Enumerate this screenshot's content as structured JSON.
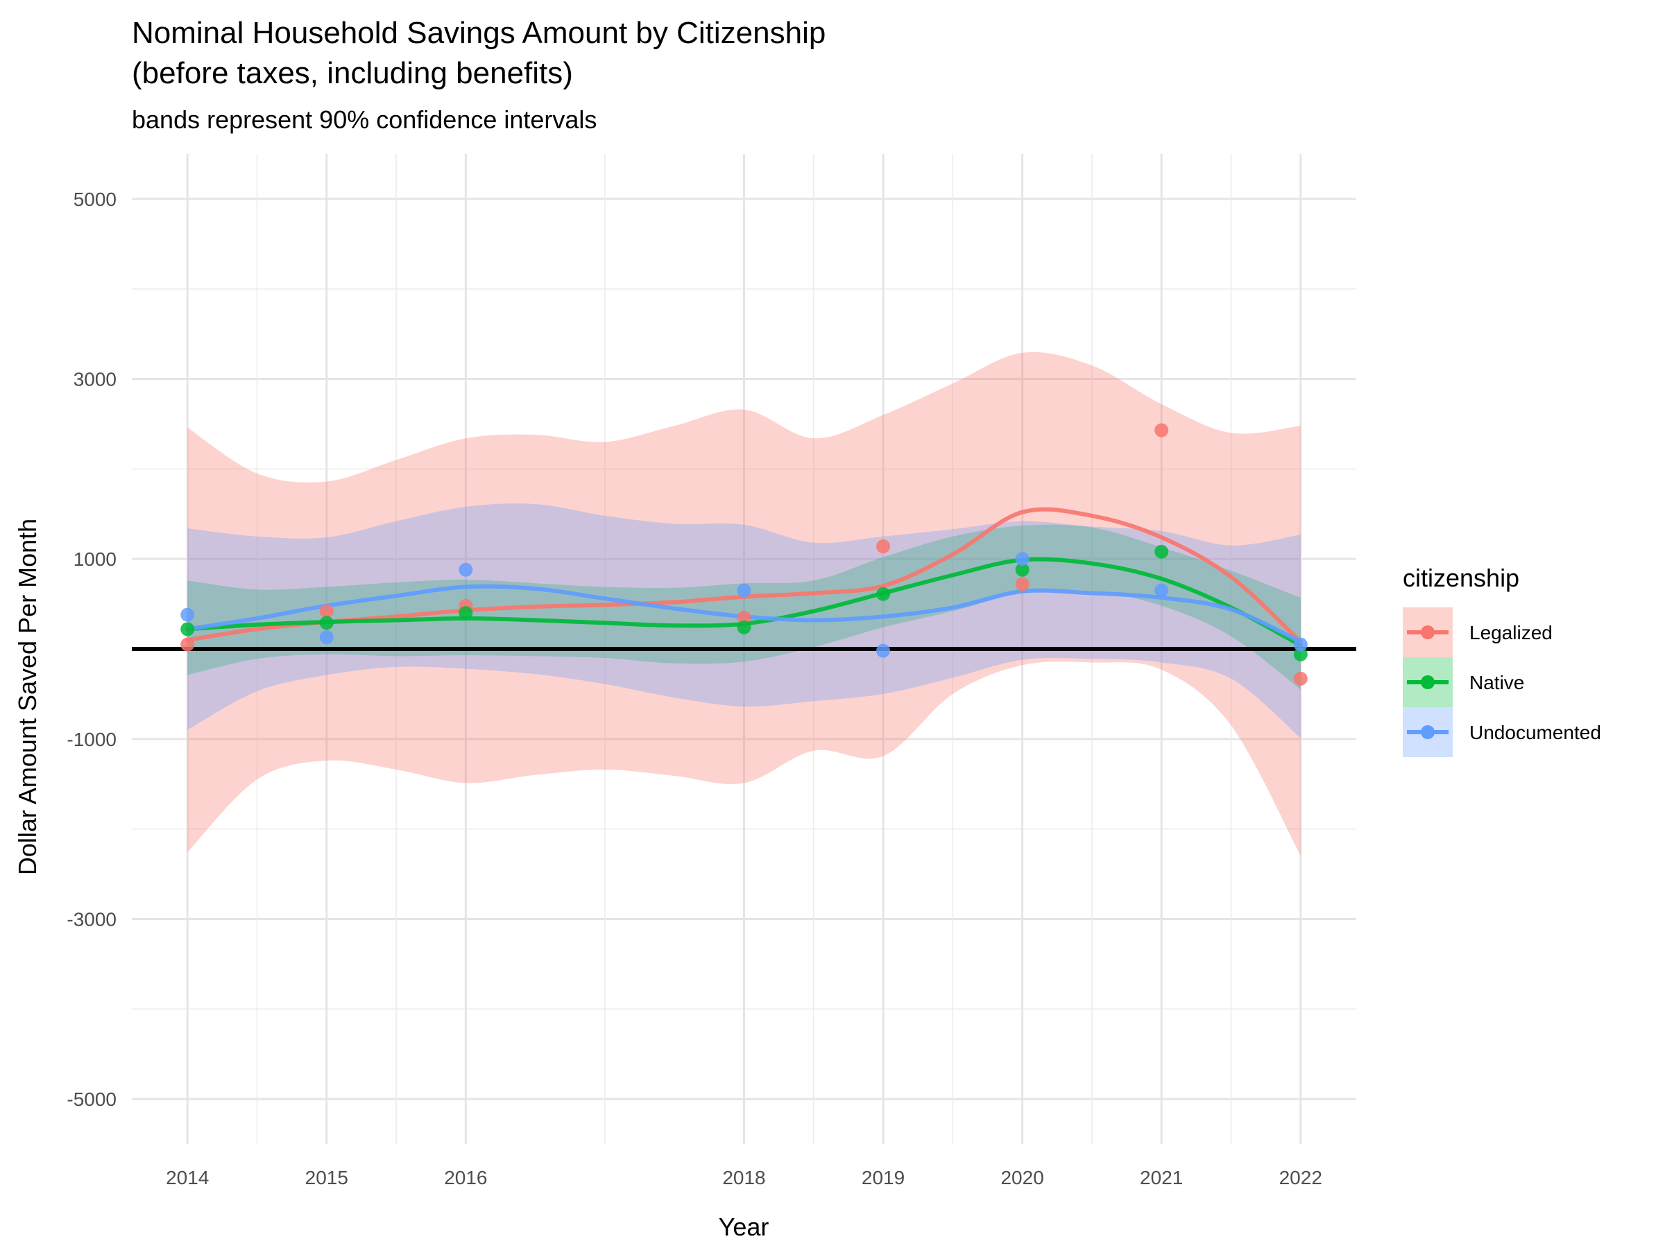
{
  "chart_data": {
    "type": "line",
    "title": "Nominal Household Savings Amount by Citizenship",
    "title_line2": "(before taxes, including benefits)",
    "subtitle": "bands represent 90% confidence intervals",
    "xlabel": "Year",
    "ylabel": "Dollar Amount Saved Per Month",
    "xlim": [
      2013.6,
      2022.4
    ],
    "ylim": [
      -5500,
      5500
    ],
    "x_ticks": [
      2014,
      2015,
      2016,
      2018,
      2019,
      2020,
      2021,
      2022
    ],
    "x_tick_labels": [
      "2014",
      "2015",
      "2016",
      "2018",
      "2019",
      "2020",
      "2021",
      "2022"
    ],
    "x_minor_gridlines": [
      2014.5,
      2015.5,
      2017,
      2018.5,
      2019.5,
      2020.5,
      2021.5
    ],
    "y_ticks": [
      -5000,
      -3000,
      -1000,
      1000,
      3000,
      5000
    ],
    "y_tick_labels": [
      "-5000",
      "-3000",
      "-1000",
      "1000",
      "3000",
      "5000"
    ],
    "y_minor_gridlines": [
      -4000,
      -2000,
      0,
      2000,
      4000
    ],
    "reference_line_y": 0,
    "grid": true,
    "legend": {
      "title": "citizenship",
      "position": "right"
    },
    "series": [
      {
        "name": "Legalized",
        "color": "#F8766D",
        "band_opacity": 0.32,
        "points": [
          [
            2014,
            50
          ],
          [
            2015,
            420
          ],
          [
            2016,
            480
          ],
          [
            2018,
            350
          ],
          [
            2019,
            1140
          ],
          [
            2020,
            720
          ],
          [
            2021,
            2430
          ],
          [
            2022,
            -330
          ]
        ],
        "smooth": [
          [
            2014,
            100
          ],
          [
            2014.5,
            220
          ],
          [
            2015,
            300
          ],
          [
            2015.5,
            360
          ],
          [
            2016,
            430
          ],
          [
            2016.5,
            470
          ],
          [
            2017,
            490
          ],
          [
            2017.5,
            520
          ],
          [
            2018,
            580
          ],
          [
            2018.5,
            620
          ],
          [
            2019,
            700
          ],
          [
            2019.5,
            1050
          ],
          [
            2020,
            1520
          ],
          [
            2020.5,
            1480
          ],
          [
            2021,
            1240
          ],
          [
            2021.5,
            800
          ],
          [
            2022,
            80
          ]
        ],
        "band_upper": [
          [
            2014,
            2460
          ],
          [
            2014.5,
            1950
          ],
          [
            2015,
            1860
          ],
          [
            2015.5,
            2100
          ],
          [
            2016,
            2340
          ],
          [
            2016.5,
            2380
          ],
          [
            2017,
            2300
          ],
          [
            2017.5,
            2480
          ],
          [
            2018,
            2660
          ],
          [
            2018.5,
            2340
          ],
          [
            2019,
            2600
          ],
          [
            2019.5,
            2950
          ],
          [
            2020,
            3290
          ],
          [
            2020.5,
            3150
          ],
          [
            2021,
            2720
          ],
          [
            2021.5,
            2400
          ],
          [
            2022,
            2480
          ]
        ],
        "band_lower": [
          [
            2014,
            -2260
          ],
          [
            2014.5,
            -1450
          ],
          [
            2015,
            -1240
          ],
          [
            2015.5,
            -1340
          ],
          [
            2016,
            -1490
          ],
          [
            2016.5,
            -1400
          ],
          [
            2017,
            -1340
          ],
          [
            2017.5,
            -1410
          ],
          [
            2018,
            -1490
          ],
          [
            2018.5,
            -1130
          ],
          [
            2019,
            -1190
          ],
          [
            2019.5,
            -500
          ],
          [
            2020,
            -180
          ],
          [
            2020.5,
            -150
          ],
          [
            2021,
            -230
          ],
          [
            2021.5,
            -850
          ],
          [
            2022,
            -2300
          ]
        ]
      },
      {
        "name": "Native",
        "color": "#00BA38",
        "band_opacity": 0.3,
        "points": [
          [
            2014,
            220
          ],
          [
            2015,
            290
          ],
          [
            2016,
            400
          ],
          [
            2018,
            240
          ],
          [
            2019,
            610
          ],
          [
            2020,
            880
          ],
          [
            2021,
            1080
          ],
          [
            2022,
            -60
          ]
        ],
        "smooth": [
          [
            2014,
            220
          ],
          [
            2014.5,
            270
          ],
          [
            2015,
            300
          ],
          [
            2015.5,
            320
          ],
          [
            2016,
            340
          ],
          [
            2016.5,
            320
          ],
          [
            2017,
            290
          ],
          [
            2017.5,
            260
          ],
          [
            2018,
            280
          ],
          [
            2018.5,
            420
          ],
          [
            2019,
            620
          ],
          [
            2019.5,
            820
          ],
          [
            2020,
            990
          ],
          [
            2020.5,
            950
          ],
          [
            2021,
            780
          ],
          [
            2021.5,
            460
          ],
          [
            2022,
            40
          ]
        ],
        "band_upper": [
          [
            2014,
            760
          ],
          [
            2014.5,
            660
          ],
          [
            2015,
            690
          ],
          [
            2015.5,
            740
          ],
          [
            2016,
            770
          ],
          [
            2016.5,
            730
          ],
          [
            2017,
            690
          ],
          [
            2017.5,
            680
          ],
          [
            2018,
            730
          ],
          [
            2018.5,
            760
          ],
          [
            2019,
            1020
          ],
          [
            2019.5,
            1250
          ],
          [
            2020,
            1370
          ],
          [
            2020.5,
            1350
          ],
          [
            2021,
            1130
          ],
          [
            2021.5,
            870
          ],
          [
            2022,
            570
          ]
        ],
        "band_lower": [
          [
            2014,
            -290
          ],
          [
            2014.5,
            -110
          ],
          [
            2015,
            -60
          ],
          [
            2015.5,
            -80
          ],
          [
            2016,
            -70
          ],
          [
            2016.5,
            -80
          ],
          [
            2017,
            -100
          ],
          [
            2017.5,
            -160
          ],
          [
            2018,
            -140
          ],
          [
            2018.5,
            20
          ],
          [
            2019,
            240
          ],
          [
            2019.5,
            420
          ],
          [
            2020,
            620
          ],
          [
            2020.5,
            640
          ],
          [
            2021,
            480
          ],
          [
            2021.5,
            140
          ],
          [
            2022,
            -450
          ]
        ]
      },
      {
        "name": "Undocumented",
        "color": "#619CFF",
        "band_opacity": 0.3,
        "points": [
          [
            2014,
            380
          ],
          [
            2015,
            130
          ],
          [
            2016,
            880
          ],
          [
            2018,
            650
          ],
          [
            2019,
            -20
          ],
          [
            2020,
            1000
          ],
          [
            2021,
            650
          ],
          [
            2022,
            50
          ]
        ],
        "smooth": [
          [
            2014,
            220
          ],
          [
            2014.5,
            340
          ],
          [
            2015,
            480
          ],
          [
            2015.5,
            590
          ],
          [
            2016,
            690
          ],
          [
            2016.5,
            670
          ],
          [
            2017,
            560
          ],
          [
            2017.5,
            450
          ],
          [
            2018,
            360
          ],
          [
            2018.5,
            320
          ],
          [
            2019,
            360
          ],
          [
            2019.5,
            460
          ],
          [
            2020,
            640
          ],
          [
            2020.5,
            620
          ],
          [
            2021,
            570
          ],
          [
            2021.5,
            440
          ],
          [
            2022,
            80
          ]
        ],
        "band_upper": [
          [
            2014,
            1340
          ],
          [
            2014.5,
            1250
          ],
          [
            2015,
            1240
          ],
          [
            2015.5,
            1420
          ],
          [
            2016,
            1580
          ],
          [
            2016.5,
            1610
          ],
          [
            2017,
            1480
          ],
          [
            2017.5,
            1390
          ],
          [
            2018,
            1380
          ],
          [
            2018.5,
            1180
          ],
          [
            2019,
            1250
          ],
          [
            2019.5,
            1330
          ],
          [
            2020,
            1420
          ],
          [
            2020.5,
            1360
          ],
          [
            2021,
            1310
          ],
          [
            2021.5,
            1150
          ],
          [
            2022,
            1270
          ]
        ],
        "band_lower": [
          [
            2014,
            -900
          ],
          [
            2014.5,
            -470
          ],
          [
            2015,
            -290
          ],
          [
            2015.5,
            -200
          ],
          [
            2016,
            -220
          ],
          [
            2016.5,
            -280
          ],
          [
            2017,
            -390
          ],
          [
            2017.5,
            -540
          ],
          [
            2018,
            -640
          ],
          [
            2018.5,
            -580
          ],
          [
            2019,
            -500
          ],
          [
            2019.5,
            -320
          ],
          [
            2020,
            -120
          ],
          [
            2020.5,
            -110
          ],
          [
            2021,
            -150
          ],
          [
            2021.5,
            -330
          ],
          [
            2022,
            -990
          ]
        ]
      }
    ]
  }
}
